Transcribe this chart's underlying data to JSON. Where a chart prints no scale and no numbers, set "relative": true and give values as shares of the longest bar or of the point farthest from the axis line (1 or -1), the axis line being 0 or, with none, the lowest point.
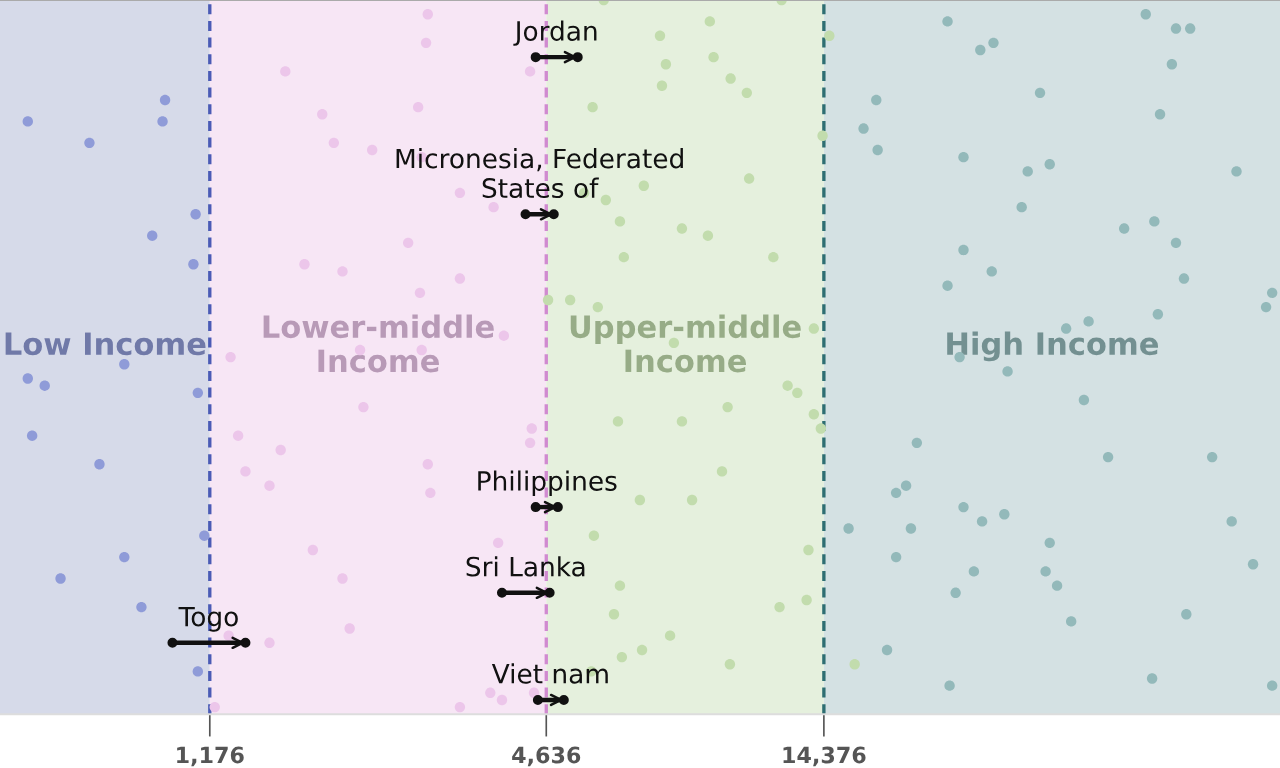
{
  "chart_data": {
    "type": "scatter",
    "relative": true,
    "log": "x",
    "xlim": [
      500,
      92300
    ],
    "xticks": [
      {
        "value": 1176,
        "label": "1,176"
      },
      {
        "value": 4636,
        "label": "4,636"
      },
      {
        "value": 14376,
        "label": "14,376"
      }
    ],
    "tick_labels": "x",
    "grid": false,
    "legend": false,
    "bands": [
      {
        "axis": "x",
        "from": 500,
        "to": 1176,
        "label": "Low Income",
        "color": "#d6dae9"
      },
      {
        "axis": "x",
        "from": 1176,
        "to": 4636,
        "label": "Lower-middle\nIncome",
        "color": "#f7e6f5"
      },
      {
        "axis": "x",
        "from": 4636,
        "to": 14376,
        "label": "Upper-middle\nIncome",
        "color": "#e5f0dd"
      },
      {
        "axis": "x",
        "from": 14376,
        "to": 92300,
        "label": "High Income",
        "color": "#d4e1e3"
      }
    ],
    "ref_lines": [
      {
        "axis": "x",
        "value": 1176,
        "color": "#4a5bb5",
        "line_style": "dashed"
      },
      {
        "axis": "x",
        "value": 4636,
        "color": "#d08ad0",
        "line_style": "dashed"
      },
      {
        "axis": "x",
        "value": 14376,
        "color": "#2e6e72",
        "line_style": "dashed"
      }
    ],
    "series": [
      {
        "color": "#8f9bd8",
        "x": [
          560,
          720,
          980,
          970,
          1110,
          930,
          1100,
          830,
          560,
          600,
          1120,
          570,
          750,
          1150,
          830,
          640,
          890,
          1120
        ],
        "values": [
          0.83,
          0.8,
          0.86,
          0.83,
          0.7,
          0.67,
          0.63,
          0.49,
          0.47,
          0.46,
          0.45,
          0.39,
          0.35,
          0.25,
          0.22,
          0.19,
          0.15,
          0.06
        ]
      },
      {
        "color": "#ecc6ea",
        "x": [
          2860,
          2840,
          1600,
          4340,
          1860,
          2750,
          1950,
          2280,
          2790,
          3260,
          3740,
          2640,
          1730,
          2020,
          3260,
          2770,
          3900,
          1280,
          2790,
          2170,
          2200,
          4370,
          4340,
          1320,
          1570,
          1360,
          1500,
          2860,
          2890,
          3810,
          1790,
          2020,
          1270,
          2080,
          1500,
          3690,
          3870,
          3260,
          1200,
          4410
        ],
        "values": [
          0.98,
          0.94,
          0.9,
          0.9,
          0.84,
          0.85,
          0.8,
          0.79,
          0.78,
          0.73,
          0.71,
          0.66,
          0.63,
          0.62,
          0.61,
          0.59,
          0.53,
          0.5,
          0.51,
          0.51,
          0.43,
          0.4,
          0.38,
          0.39,
          0.37,
          0.34,
          0.32,
          0.35,
          0.31,
          0.24,
          0.23,
          0.19,
          0.11,
          0.12,
          0.1,
          0.03,
          0.02,
          0.01,
          0.01,
          0.03
        ]
      },
      {
        "color": "#c2dcad",
        "x": [
          5860,
          5600,
          5410,
          5910,
          6260,
          6360,
          5110,
          5720,
          4670,
          12100,
          9030,
          7370,
          7550,
          9170,
          7430,
          9830,
          10500,
          10600,
          6900,
          8060,
          8960,
          11700,
          13800,
          7800,
          14300,
          14700,
          12400,
          12900,
          9710,
          8060,
          13800,
          14200,
          9490,
          8400,
          6790,
          13500,
          13400,
          12000,
          7680,
          6850,
          9800,
          16300,
          6210,
          5630,
          6260,
          6110,
          6310,
          5570
        ],
        "values": [
          1,
          0.85,
          0.73,
          0.72,
          0.69,
          0.64,
          0.58,
          0.57,
          0.58,
          1,
          0.97,
          0.95,
          0.91,
          0.92,
          0.88,
          0.89,
          0.87,
          0.75,
          0.74,
          0.68,
          0.67,
          0.64,
          0.54,
          0.52,
          0.81,
          0.95,
          0.46,
          0.45,
          0.43,
          0.41,
          0.42,
          0.4,
          0.34,
          0.3,
          0.3,
          0.23,
          0.16,
          0.15,
          0.11,
          0.09,
          0.07,
          0.07,
          0.41,
          0.25,
          0.18,
          0.14,
          0.08,
          0.06
        ]
      },
      {
        "color": "#93b9ba",
        "x": [
          23800,
          53400,
          60400,
          64000,
          27200,
          28700,
          59400,
          17800,
          34700,
          56600,
          16900,
          17900,
          25400,
          33000,
          36100,
          77300,
          32200,
          48900,
          55300,
          60400,
          25400,
          28500,
          23800,
          62400,
          89400,
          87200,
          56100,
          38600,
          42300,
          25000,
          30400,
          41500,
          21000,
          45800,
          70000,
          19300,
          20100,
          25400,
          27400,
          30000,
          15900,
          20500,
          75800,
          19300,
          36100,
          26500,
          35500,
          37200,
          24600,
          82700,
          39400,
          63000,
          18600,
          54800,
          24000,
          89400
        ],
        "values": [
          0.97,
          0.98,
          0.96,
          0.96,
          0.93,
          0.94,
          0.91,
          0.86,
          0.87,
          0.84,
          0.82,
          0.79,
          0.78,
          0.76,
          0.77,
          0.76,
          0.71,
          0.68,
          0.69,
          0.66,
          0.65,
          0.62,
          0.6,
          0.61,
          0.59,
          0.57,
          0.56,
          0.54,
          0.55,
          0.5,
          0.48,
          0.44,
          0.38,
          0.36,
          0.36,
          0.31,
          0.32,
          0.29,
          0.27,
          0.28,
          0.26,
          0.26,
          0.27,
          0.22,
          0.24,
          0.2,
          0.2,
          0.18,
          0.17,
          0.21,
          0.13,
          0.14,
          0.09,
          0.05,
          0.04,
          0.04
        ]
      },
      {
        "type": "line",
        "name": "Jordan",
        "color": "#111111",
        "marker": "circle",
        "x": [
          4440,
          5270
        ],
        "values": [
          0.92,
          0.92
        ]
      },
      {
        "type": "line",
        "name": "Micronesia, Federated\nStates of",
        "color": "#111111",
        "marker": "circle",
        "x": [
          4260,
          4780
        ],
        "values": [
          0.7,
          0.7
        ]
      },
      {
        "type": "line",
        "name": "Philippines",
        "color": "#111111",
        "marker": "circle",
        "x": [
          4440,
          4860
        ],
        "values": [
          0.29,
          0.29
        ]
      },
      {
        "type": "line",
        "name": "Sri Lanka",
        "color": "#111111",
        "marker": "circle",
        "x": [
          3870,
          4700
        ],
        "values": [
          0.17,
          0.17
        ]
      },
      {
        "type": "line",
        "name": "Togo",
        "color": "#111111",
        "marker": "circle",
        "x": [
          1010,
          1360
        ],
        "values": [
          0.1,
          0.1
        ]
      },
      {
        "type": "line",
        "name": "Viet nam",
        "color": "#111111",
        "marker": "circle",
        "x": [
          4480,
          4980
        ],
        "values": [
          0.02,
          0.02
        ]
      }
    ]
  }
}
